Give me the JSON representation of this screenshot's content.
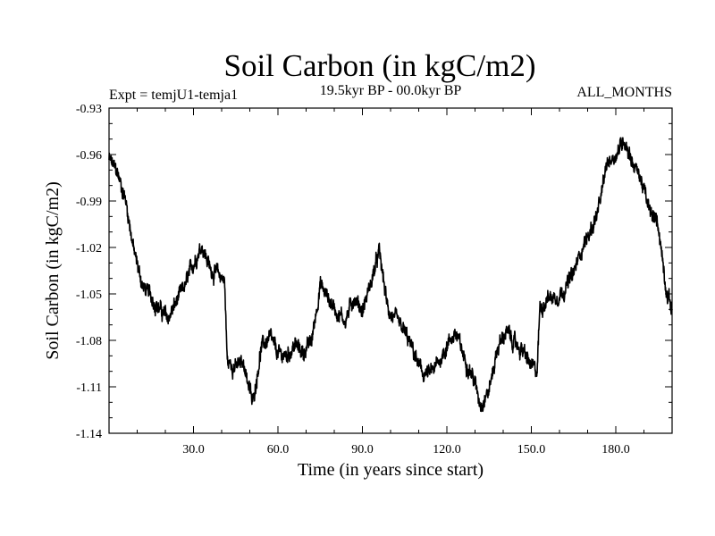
{
  "chart_data": {
    "type": "line",
    "title": "Soil Carbon (in kgC/m2)",
    "left_note": "Expt = temjU1-temja1",
    "center_note": "19.5kyr BP - 00.0kyr BP",
    "right_note": "ALL_MONTHS",
    "xlabel": "Time (in years since start)",
    "ylabel": "Soil Carbon (in kgC/m2)",
    "xlim": [
      0,
      200
    ],
    "ylim": [
      -1.14,
      -0.93
    ],
    "x_ticks": [
      30,
      60,
      90,
      120,
      150,
      180
    ],
    "x_tick_labels": [
      "30.0",
      "60.0",
      "90.0",
      "120.0",
      "150.0",
      "180.0"
    ],
    "y_ticks": [
      -0.93,
      -0.96,
      -0.99,
      -1.02,
      -1.05,
      -1.08,
      -1.11,
      -1.14
    ],
    "y_tick_labels": [
      "-0.93",
      "-0.96",
      "-0.99",
      "-1.02",
      "-1.05",
      "-1.08",
      "-1.11",
      "-1.14"
    ],
    "series": [
      {
        "name": "Soil Carbon",
        "x": [
          0,
          3,
          6,
          9,
          12,
          15,
          18,
          21,
          24,
          27,
          30,
          33,
          36,
          39,
          41,
          42,
          45,
          48,
          51,
          54,
          57,
          60,
          63,
          66,
          69,
          72,
          75,
          78,
          81,
          84,
          87,
          90,
          93,
          96,
          99,
          102,
          105,
          108,
          111,
          114,
          117,
          120,
          123,
          126,
          129,
          132,
          135,
          138,
          141,
          144,
          147,
          150,
          152,
          153,
          156,
          159,
          162,
          165,
          168,
          171,
          174,
          177,
          180,
          183,
          186,
          189,
          192,
          195,
          198,
          200
        ],
        "values": [
          -0.963,
          -0.972,
          -0.99,
          -1.024,
          -1.045,
          -1.052,
          -1.06,
          -1.066,
          -1.055,
          -1.045,
          -1.03,
          -1.018,
          -1.034,
          -1.038,
          -1.04,
          -1.094,
          -1.097,
          -1.095,
          -1.121,
          -1.085,
          -1.078,
          -1.089,
          -1.09,
          -1.083,
          -1.088,
          -1.08,
          -1.044,
          -1.053,
          -1.062,
          -1.067,
          -1.052,
          -1.061,
          -1.043,
          -1.023,
          -1.06,
          -1.068,
          -1.075,
          -1.087,
          -1.101,
          -1.102,
          -1.095,
          -1.083,
          -1.075,
          -1.09,
          -1.102,
          -1.121,
          -1.112,
          -1.085,
          -1.074,
          -1.082,
          -1.087,
          -1.097,
          -1.101,
          -1.06,
          -1.052,
          -1.052,
          -1.046,
          -1.037,
          -1.02,
          -1.01,
          -0.995,
          -0.965,
          -0.96,
          -0.95,
          -0.965,
          -0.976,
          -0.997,
          -1.004,
          -1.048,
          -1.06
        ]
      }
    ]
  }
}
